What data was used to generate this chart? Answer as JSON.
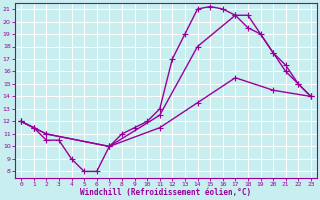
{
  "xlabel": "Windchill (Refroidissement éolien,°C)",
  "bg_color": "#c8eef0",
  "line_color": "#990099",
  "grid_color": "#ffffff",
  "xlim": [
    -0.5,
    23.5
  ],
  "ylim": [
    7.5,
    21.5
  ],
  "xticks": [
    0,
    1,
    2,
    3,
    4,
    5,
    6,
    7,
    8,
    9,
    10,
    11,
    12,
    13,
    14,
    15,
    16,
    17,
    18,
    19,
    20,
    21,
    22,
    23
  ],
  "yticks": [
    8,
    9,
    10,
    11,
    12,
    13,
    14,
    15,
    16,
    17,
    18,
    19,
    20,
    21
  ],
  "line1_x": [
    0,
    1,
    2,
    3,
    4,
    5,
    6,
    7,
    8,
    9,
    10,
    11,
    12,
    13,
    14,
    15,
    16,
    17,
    18,
    19,
    20,
    21,
    22,
    23
  ],
  "line1_y": [
    12,
    11.5,
    10.5,
    10.5,
    9,
    8,
    8,
    10,
    11,
    11.5,
    12,
    13,
    17,
    19,
    21,
    21.2,
    21,
    20.5,
    19.5,
    19,
    17.5,
    16,
    15,
    14
  ],
  "line2_x": [
    0,
    1,
    2,
    7,
    11,
    14,
    17,
    18,
    20,
    21,
    22,
    23
  ],
  "line2_y": [
    12,
    11.5,
    11,
    10,
    12.5,
    18,
    20.5,
    20.5,
    17.5,
    16.5,
    15,
    14
  ],
  "line3_x": [
    0,
    1,
    2,
    7,
    11,
    14,
    17,
    20,
    23
  ],
  "line3_y": [
    12,
    11.5,
    11,
    10,
    11.5,
    13.5,
    15.5,
    14.5,
    14
  ],
  "marker": "+",
  "markersize": 4,
  "linewidth": 1.0
}
